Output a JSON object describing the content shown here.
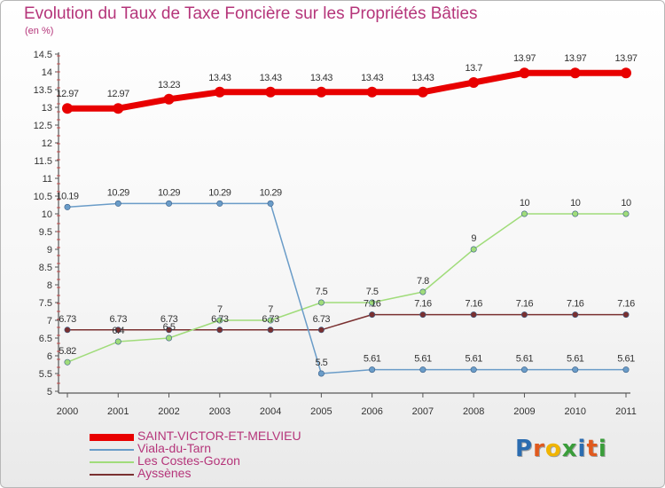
{
  "header": {
    "title": "Evolution du Taux de Taxe Foncière sur les Propriétés Bâties",
    "unit": "(en %)"
  },
  "chart_data": {
    "type": "line",
    "title": "Evolution du Taux de Taxe Foncière sur les Propriétés Bâties",
    "ylabel": "(en %)",
    "xlabel": "",
    "ylim": [
      5,
      14.5
    ],
    "ytick_step": 0.5,
    "grid": false,
    "legend": "bottom-left",
    "categories": [
      "2000",
      "2001",
      "2002",
      "2003",
      "2004",
      "2005",
      "2006",
      "2007",
      "2008",
      "2009",
      "2010",
      "2011"
    ],
    "series": [
      {
        "name": "SAINT-VICTOR-ET-MELVIEU",
        "color": "#e80000",
        "stroke": 7,
        "marker": 6,
        "values": [
          12.97,
          12.97,
          13.23,
          13.43,
          13.43,
          13.43,
          13.43,
          13.43,
          13.7,
          13.97,
          13.97,
          13.97
        ],
        "labels": [
          "12.97",
          "12.97",
          "13.23",
          "13.43",
          "13.43",
          "13.43",
          "13.43",
          "13.43",
          "13.7",
          "13.97",
          "13.97",
          "13.97"
        ]
      },
      {
        "name": "Viala-du-Tarn",
        "color": "#6a9cc8",
        "stroke": 1.5,
        "marker": 3.2,
        "values": [
          10.19,
          10.29,
          10.29,
          10.29,
          10.29,
          5.5,
          5.61,
          5.61,
          5.61,
          5.61,
          5.61,
          5.61
        ],
        "labels": [
          "10.19",
          "10.29",
          "10.29",
          "10.29",
          "10.29",
          "5.5",
          "5.61",
          "5.61",
          "5.61",
          "5.61",
          "5.61",
          "5.61"
        ]
      },
      {
        "name": "Les Costes-Gozon",
        "color": "#a0dc7a",
        "stroke": 1.5,
        "marker": 3.2,
        "values": [
          5.82,
          6.4,
          6.5,
          7,
          7,
          7.5,
          7.5,
          7.8,
          9,
          10,
          10,
          10
        ],
        "labels": [
          "5.82",
          "6.4",
          "6.5",
          "7",
          "7",
          "7.5",
          "7.5",
          "7.8",
          "9",
          "10",
          "10",
          "10"
        ]
      },
      {
        "name": "Ayssènes",
        "color": "#7a3030",
        "stroke": 1.5,
        "marker": 3.2,
        "values": [
          6.73,
          6.73,
          6.73,
          6.73,
          6.73,
          6.73,
          7.16,
          7.16,
          7.16,
          7.16,
          7.16,
          7.16
        ],
        "labels": [
          "6.73",
          "6.73",
          "6.73",
          "6.73",
          "6.73",
          "6.73",
          "7.16",
          "7.16",
          "7.16",
          "7.16",
          "7.16",
          "7.16"
        ]
      }
    ]
  },
  "logo": {
    "letters": [
      "P",
      "r",
      "o",
      "x",
      "i",
      "t",
      "i"
    ],
    "colors": [
      "#2b6cb0",
      "#e05a1e",
      "#f0b400",
      "#3a9d3a",
      "#2b6cb0",
      "#e05a1e",
      "#3a9d3a"
    ]
  }
}
